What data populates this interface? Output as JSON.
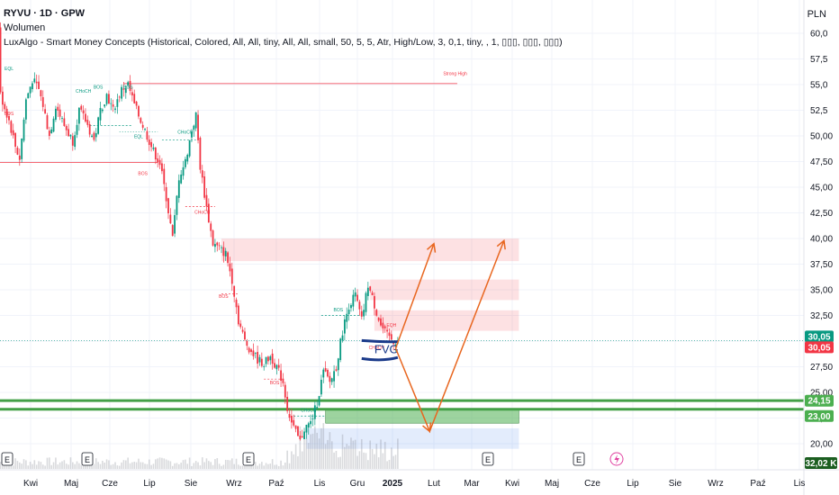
{
  "header": {
    "title": "RYVU · 1D · GPW",
    "volume_label": "Wolumen",
    "indicator_label": "LuxAlgo - Smart Money Concepts (Historical, Colored, All, All, tiny, All, All, small, 50, 5, 5, Atr, High/Low, 3, 0,1, tiny, , 1, ▯▯▯, ▯▯▯, ▯▯▯)"
  },
  "currency": "PLN",
  "chart_data": {
    "type": "candlestick",
    "symbol": "RYVU",
    "interval": "1D",
    "exchange": "GPW",
    "ylim": [
      18.8,
      61.6
    ],
    "y_ticks": [
      "60,0",
      "57,5",
      "55,0",
      "52,5",
      "50,00",
      "47,50",
      "45,00",
      "42,50",
      "40,00",
      "37,50",
      "35,00",
      "32,50",
      "30,00",
      "27,50",
      "25,00",
      "22,50",
      "20,00"
    ],
    "x_ticks": [
      "Kwi",
      "Maj",
      "Cze",
      "Lip",
      "Sie",
      "Wrz",
      "Paź",
      "Lis",
      "Gru",
      "2025",
      "Lut",
      "Mar",
      "Kwi",
      "Maj",
      "Cze",
      "Lip",
      "Sie",
      "Wrz",
      "Paź",
      "Lis"
    ],
    "price_badges": [
      {
        "value": "30,05",
        "color": "#089981"
      },
      {
        "value": "30,05",
        "color": "#f23645"
      },
      {
        "value": "24,15",
        "color": "#4caf50"
      },
      {
        "value": "23,00",
        "color": "#4caf50"
      }
    ],
    "volume_badge": "32,02 K",
    "price_path": [
      {
        "t": -18,
        "p": 60.5
      },
      {
        "t": -15,
        "p": 57.5
      },
      {
        "t": -12,
        "p": 58.0
      },
      {
        "t": -8,
        "p": 56.5
      },
      {
        "t": -4,
        "p": 54.0
      },
      {
        "t": 0,
        "p": 51.5
      },
      {
        "t": 3,
        "p": 49.0
      },
      {
        "t": 5,
        "p": 47.8
      },
      {
        "t": 8,
        "p": 53.5
      },
      {
        "t": 11,
        "p": 55.5
      },
      {
        "t": 14,
        "p": 54.5
      },
      {
        "t": 16,
        "p": 53.0
      },
      {
        "t": 19,
        "p": 50.0
      },
      {
        "t": 22,
        "p": 53.0
      },
      {
        "t": 26,
        "p": 51.0
      },
      {
        "t": 30,
        "p": 49.5
      },
      {
        "t": 33,
        "p": 52.5
      },
      {
        "t": 36,
        "p": 51.5
      },
      {
        "t": 40,
        "p": 49.5
      },
      {
        "t": 43,
        "p": 52.5
      },
      {
        "t": 46,
        "p": 54.0
      },
      {
        "t": 49,
        "p": 52.5
      },
      {
        "t": 53,
        "p": 54.5
      },
      {
        "t": 56,
        "p": 55.0
      },
      {
        "t": 59,
        "p": 53.0
      },
      {
        "t": 62,
        "p": 51.5
      },
      {
        "t": 65,
        "p": 50.0
      },
      {
        "t": 68,
        "p": 48.5
      },
      {
        "t": 71,
        "p": 47.3
      },
      {
        "t": 74,
        "p": 44.0
      },
      {
        "t": 77,
        "p": 40.0
      },
      {
        "t": 80,
        "p": 46.0
      },
      {
        "t": 83,
        "p": 47.5
      },
      {
        "t": 86,
        "p": 50.5
      },
      {
        "t": 88,
        "p": 52.0
      },
      {
        "t": 90,
        "p": 47.0
      },
      {
        "t": 93,
        "p": 43.0
      },
      {
        "t": 96,
        "p": 39.5
      },
      {
        "t": 99,
        "p": 39.0
      },
      {
        "t": 102,
        "p": 38.5
      },
      {
        "t": 105,
        "p": 36.0
      },
      {
        "t": 108,
        "p": 32.0
      },
      {
        "t": 111,
        "p": 30.0
      },
      {
        "t": 114,
        "p": 29.0
      },
      {
        "t": 117,
        "p": 28.2
      },
      {
        "t": 120,
        "p": 27.8
      },
      {
        "t": 123,
        "p": 28.5
      },
      {
        "t": 126,
        "p": 27.5
      },
      {
        "t": 129,
        "p": 26.0
      },
      {
        "t": 131,
        "p": 23.5
      },
      {
        "t": 133,
        "p": 22.0
      },
      {
        "t": 135,
        "p": 21.0
      },
      {
        "t": 137,
        "p": 20.2
      },
      {
        "t": 139,
        "p": 21.5
      },
      {
        "t": 142,
        "p": 22.0
      },
      {
        "t": 145,
        "p": 24.0
      },
      {
        "t": 148,
        "p": 27.0
      },
      {
        "t": 151,
        "p": 26.0
      },
      {
        "t": 154,
        "p": 27.5
      },
      {
        "t": 157,
        "p": 31.0
      },
      {
        "t": 160,
        "p": 33.5
      },
      {
        "t": 163,
        "p": 34.5
      },
      {
        "t": 166,
        "p": 32.0
      },
      {
        "t": 169,
        "p": 35.5
      },
      {
        "t": 172,
        "p": 33.5
      },
      {
        "t": 175,
        "p": 31.5
      },
      {
        "t": 178,
        "p": 30.5
      },
      {
        "t": 181,
        "p": 30.0
      },
      {
        "t": 183,
        "p": 30.05
      }
    ],
    "smc_labels": [
      {
        "text": "Strong High",
        "t": 210,
        "p": 55.9,
        "color": "#f23645"
      },
      {
        "text": "BOS",
        "t": 63,
        "p": 46.2,
        "color": "#f23645"
      },
      {
        "text": "CHoCH",
        "t": 83,
        "p": 50.2,
        "color": "#089981"
      },
      {
        "text": "CHoCH",
        "t": 91,
        "p": 42.4,
        "color": "#f23645"
      },
      {
        "text": "BOS",
        "t": 42,
        "p": 54.6,
        "color": "#089981"
      },
      {
        "text": "BOS",
        "t": 56,
        "p": 54.6,
        "color": "#089981"
      },
      {
        "text": "CHoCH",
        "t": 35,
        "p": 54.2,
        "color": "#089981"
      },
      {
        "text": "EQL",
        "t": 61,
        "p": 49.8,
        "color": "#089981"
      },
      {
        "text": "BOS",
        "t": 101,
        "p": 34.2,
        "color": "#f23645"
      },
      {
        "text": "BOS",
        "t": 125,
        "p": 25.8,
        "color": "#f23645"
      },
      {
        "text": "BOS",
        "t": 155,
        "p": 32.9,
        "color": "#089981"
      },
      {
        "text": "CHoCH",
        "t": 141,
        "p": 23.1,
        "color": "#089981"
      },
      {
        "text": "EQH",
        "t": 180,
        "p": 31.4,
        "color": "#f23645"
      },
      {
        "text": "CHoCH",
        "t": 173,
        "p": 29.2,
        "color": "#f23645"
      },
      {
        "text": "BOS",
        "t": 0,
        "p": 52.0,
        "color": "#f23645"
      },
      {
        "text": "EQL",
        "t": 0,
        "p": 56.4,
        "color": "#089981"
      }
    ],
    "zones": [
      {
        "kind": "supply",
        "p_top": 40.0,
        "p_bottom": 37.8,
        "t_start": 100,
        "t_end": 240
      },
      {
        "kind": "supply",
        "p_top": 36.0,
        "p_bottom": 34.0,
        "t_start": 170,
        "t_end": 240
      },
      {
        "kind": "supply",
        "p_top": 33.0,
        "p_bottom": 31.0,
        "t_start": 172,
        "t_end": 240
      },
      {
        "kind": "demand",
        "p_top": 23.3,
        "p_bottom": 22.0,
        "t_start": 149,
        "t_end": 240
      },
      {
        "kind": "demand-light",
        "p_top": 21.5,
        "p_bottom": 19.5,
        "t_start": 140,
        "t_end": 240
      }
    ],
    "support_lines": [
      24.2,
      23.35
    ],
    "fvg_label": "FVG",
    "scenario_arrows": [
      {
        "color": "#e8661f",
        "points": [
          [
            182,
            29.3
          ],
          [
            200,
            39.5
          ]
        ]
      },
      {
        "color": "#e8661f",
        "points": [
          [
            182,
            29.3
          ],
          [
            198,
            21.2
          ],
          [
            233,
            39.8
          ]
        ]
      }
    ]
  }
}
